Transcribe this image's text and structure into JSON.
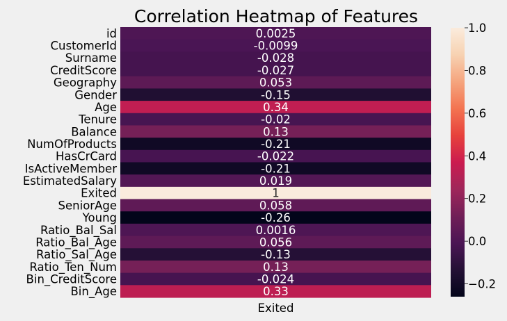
{
  "chart_data": {
    "type": "heatmap",
    "title": "Correlation Heatmap of Features",
    "x_categories": [
      "Exited"
    ],
    "y_categories": [
      "id",
      "CustomerId",
      "Surname",
      "CreditScore",
      "Geography",
      "Gender",
      "Age",
      "Tenure",
      "Balance",
      "NumOfProducts",
      "HasCrCard",
      "IsActiveMember",
      "EstimatedSalary",
      "Exited",
      "SeniorAge",
      "Young",
      "Ratio_Bal_Sal",
      "Ratio_Bal_Age",
      "Ratio_Sal_Age",
      "Ratio_Ten_Num",
      "Bin_CreditScore",
      "Bin_Age"
    ],
    "values": [
      0.0025,
      -0.0099,
      -0.028,
      -0.027,
      0.053,
      -0.15,
      0.34,
      -0.02,
      0.13,
      -0.21,
      -0.022,
      -0.21,
      0.019,
      1,
      0.058,
      -0.26,
      0.0016,
      0.056,
      -0.13,
      0.13,
      -0.024,
      0.33
    ],
    "annotations": [
      "0.0025",
      "-0.0099",
      "-0.028",
      "-0.027",
      "0.053",
      "-0.15",
      "0.34",
      "-0.02",
      "0.13",
      "-0.21",
      "-0.022",
      "-0.21",
      "0.019",
      "1",
      "0.058",
      "-0.26",
      "0.0016",
      "0.056",
      "-0.13",
      "0.13",
      "-0.024",
      "0.33"
    ],
    "colorbar": {
      "min": -0.26,
      "max": 1,
      "ticks": [
        1.0,
        0.8,
        0.6,
        0.4,
        0.2,
        0.0,
        -0.2
      ],
      "tick_labels": [
        "1.0",
        "0.8",
        "0.6",
        "0.4",
        "0.2",
        "0.0",
        "−0.2"
      ]
    },
    "colormap": "rocket",
    "grid": false
  }
}
